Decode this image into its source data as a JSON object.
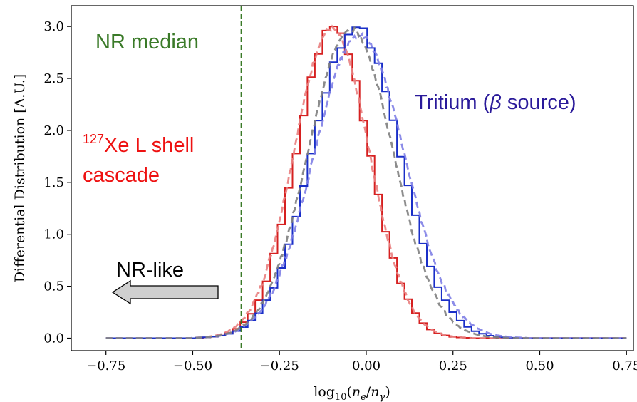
{
  "chart_data": {
    "type": "line",
    "xlabel": "log₁₀(nₑ/nγ)",
    "ylabel": "Differential Distribution [A.U.]",
    "xlim": [
      -0.85,
      0.77
    ],
    "ylim": [
      -0.12,
      3.2
    ],
    "xticks": [
      "−0.75",
      "−0.50",
      "−0.25",
      "0.00",
      "0.25",
      "0.50",
      "0.75"
    ],
    "xtick_values": [
      -0.75,
      -0.5,
      -0.25,
      0.0,
      0.25,
      0.5,
      0.75
    ],
    "yticks": [
      "0.0",
      "0.5",
      "1.0",
      "1.5",
      "2.0",
      "2.5",
      "3.0"
    ],
    "ytick_values": [
      0,
      0.5,
      1.0,
      1.5,
      2.0,
      2.5,
      3.0
    ],
    "grid": false,
    "series": [
      {
        "kind": "step",
        "color": "#d62020",
        "mu": -0.095,
        "sigma": 0.105,
        "amp": 3.0,
        "seed": 3
      },
      {
        "kind": "dashed",
        "color": "#e98080",
        "mu": -0.1,
        "sigma": 0.108,
        "amp": 2.98,
        "seed": 7
      },
      {
        "kind": "step",
        "color": "#1a2fc8",
        "mu": -0.03,
        "sigma": 0.125,
        "amp": 3.0,
        "seed": 11
      },
      {
        "kind": "dashed",
        "color": "#8080e6",
        "mu": -0.02,
        "sigma": 0.13,
        "amp": 2.92,
        "seed": 19
      },
      {
        "kind": "dashed",
        "color": "#808080",
        "mu": -0.045,
        "sigma": 0.122,
        "amp": 2.98,
        "seed": 23
      }
    ],
    "nr_median": -0.36,
    "annotations": {
      "nr_median": {
        "text": "NR median",
        "color": "#3a7a28"
      },
      "xe_line1": {
        "sup": "127",
        "text": "Xe L shell",
        "color": "#ee1111"
      },
      "xe_line2": {
        "text": "cascade",
        "color": "#ee1111"
      },
      "tritium": {
        "text": "Tritium (",
        "beta": "β",
        "rest": " source)",
        "color": "#2a1a9a"
      },
      "nr_like": {
        "text": "NR-like",
        "color": "#000000"
      }
    }
  }
}
